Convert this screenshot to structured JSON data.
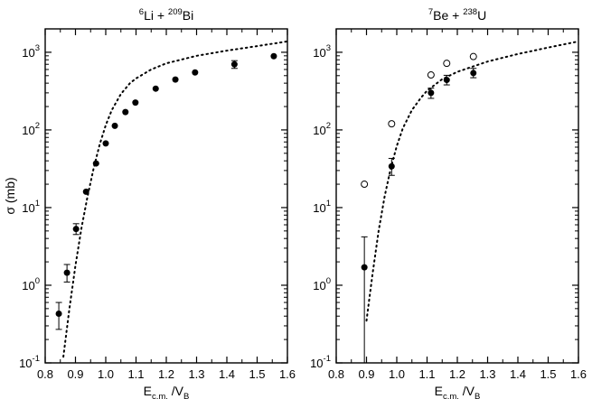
{
  "chart_data": [
    {
      "type": "scatter",
      "title_parts": {
        "pre_sup": "6",
        "base1": "Li + ",
        "sup2": "209",
        "base2": "Bi"
      },
      "xlabel_parts": {
        "main": "E",
        "sub1": "c.m.",
        "mid": " /V",
        "sub2": "B"
      },
      "ylabel": "σ (mb)",
      "xlim": [
        0.8,
        1.6
      ],
      "ylim": [
        0.1,
        2000
      ],
      "yscale": "log",
      "x_ticks": [
        "0.8",
        "0.9",
        "1.0",
        "1.1",
        "1.2",
        "1.3",
        "1.4",
        "1.5",
        "1.6"
      ],
      "y_ticks": [
        {
          "base": "10",
          "exp": "-1"
        },
        {
          "base": "10",
          "exp": "0"
        },
        {
          "base": "10",
          "exp": "1"
        },
        {
          "base": "10",
          "exp": "2"
        },
        {
          "base": "10",
          "exp": "3"
        }
      ],
      "series": [
        {
          "marker": "filled-circle",
          "points": [
            {
              "x": 0.845,
              "y": 0.43,
              "err_lo": 0.27,
              "err_hi": 0.6
            },
            {
              "x": 0.872,
              "y": 1.45,
              "err_lo": 1.1,
              "err_hi": 1.85
            },
            {
              "x": 0.902,
              "y": 5.3,
              "err_lo": 4.5,
              "err_hi": 6.2
            },
            {
              "x": 0.935,
              "y": 16,
              "err_lo": null,
              "err_hi": null
            },
            {
              "x": 0.968,
              "y": 37,
              "err_lo": null,
              "err_hi": null
            },
            {
              "x": 1.0,
              "y": 67,
              "err_lo": null,
              "err_hi": null
            },
            {
              "x": 1.03,
              "y": 113,
              "err_lo": null,
              "err_hi": null
            },
            {
              "x": 1.065,
              "y": 170,
              "err_lo": null,
              "err_hi": null
            },
            {
              "x": 1.098,
              "y": 225,
              "err_lo": null,
              "err_hi": null
            },
            {
              "x": 1.165,
              "y": 340,
              "err_lo": null,
              "err_hi": null
            },
            {
              "x": 1.23,
              "y": 445,
              "err_lo": null,
              "err_hi": null
            },
            {
              "x": 1.295,
              "y": 550,
              "err_lo": null,
              "err_hi": null
            },
            {
              "x": 1.425,
              "y": 700,
              "err_lo": 620,
              "err_hi": 780
            },
            {
              "x": 1.555,
              "y": 890,
              "err_lo": null,
              "err_hi": null
            }
          ]
        },
        {
          "style": "dotted-line",
          "x": [
            0.86,
            0.88,
            0.9,
            0.92,
            0.94,
            0.96,
            0.98,
            1.0,
            1.02,
            1.05,
            1.08,
            1.1,
            1.15,
            1.2,
            1.3,
            1.4,
            1.5,
            1.6
          ],
          "y": [
            0.12,
            0.5,
            1.8,
            5.5,
            14,
            32,
            65,
            115,
            180,
            290,
            400,
            460,
            600,
            720,
            900,
            1050,
            1200,
            1380
          ]
        }
      ]
    },
    {
      "type": "scatter",
      "title_parts": {
        "pre_sup": "7",
        "base1": "Be + ",
        "sup2": "238",
        "base2": "U"
      },
      "xlabel_parts": {
        "main": "E",
        "sub1": "c.m.",
        "mid": " /V",
        "sub2": "B"
      },
      "ylabel": "",
      "xlim": [
        0.8,
        1.6
      ],
      "ylim": [
        0.1,
        2000
      ],
      "yscale": "log",
      "x_ticks": [
        "0.8",
        "0.9",
        "1.0",
        "1.1",
        "1.2",
        "1.3",
        "1.4",
        "1.5",
        "1.6"
      ],
      "y_ticks": [
        {
          "base": "10",
          "exp": "-1"
        },
        {
          "base": "10",
          "exp": "0"
        },
        {
          "base": "10",
          "exp": "1"
        },
        {
          "base": "10",
          "exp": "2"
        },
        {
          "base": "10",
          "exp": "3"
        }
      ],
      "series": [
        {
          "marker": "filled-circle",
          "points": [
            {
              "x": 0.893,
              "y": 1.7,
              "err_lo": 0.1,
              "err_hi": 4.2
            },
            {
              "x": 0.983,
              "y": 34,
              "err_lo": 26,
              "err_hi": 43
            },
            {
              "x": 1.113,
              "y": 300,
              "err_lo": 255,
              "err_hi": 345
            },
            {
              "x": 1.165,
              "y": 440,
              "err_lo": 380,
              "err_hi": 505
            },
            {
              "x": 1.253,
              "y": 540,
              "err_lo": 470,
              "err_hi": 620
            }
          ]
        },
        {
          "marker": "open-circle",
          "points": [
            {
              "x": 0.893,
              "y": 20
            },
            {
              "x": 0.983,
              "y": 120
            },
            {
              "x": 1.113,
              "y": 510
            },
            {
              "x": 1.165,
              "y": 720
            },
            {
              "x": 1.253,
              "y": 880
            }
          ]
        },
        {
          "style": "dotted-line",
          "x": [
            0.9,
            0.92,
            0.94,
            0.96,
            0.98,
            1.0,
            1.02,
            1.05,
            1.08,
            1.1,
            1.15,
            1.2,
            1.3,
            1.4,
            1.5,
            1.6
          ],
          "y": [
            0.35,
            1.4,
            5,
            14,
            32,
            62,
            105,
            180,
            260,
            320,
            450,
            560,
            760,
            950,
            1150,
            1380
          ]
        }
      ]
    }
  ]
}
